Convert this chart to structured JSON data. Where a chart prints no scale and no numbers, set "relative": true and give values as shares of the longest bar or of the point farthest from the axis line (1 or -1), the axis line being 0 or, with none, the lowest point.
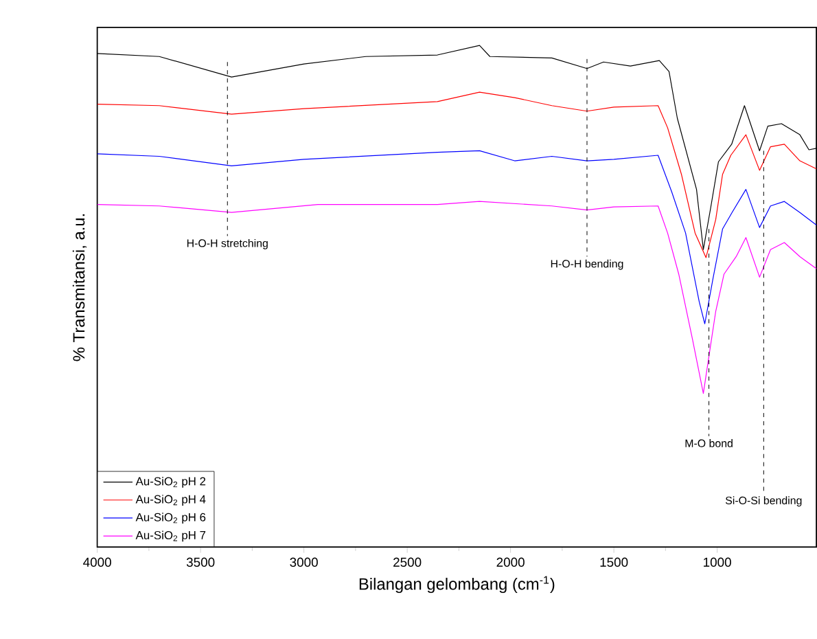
{
  "chart_data": {
    "type": "line",
    "relative": true,
    "xlabel": "Bilangan gelombang (cm$^{-1}$)",
    "ylabel": "% Transmitansi, a.u.",
    "xlim": [
      4000,
      520
    ],
    "xticks": [
      4000,
      3500,
      3000,
      2500,
      2000,
      1500,
      1000
    ],
    "legend": "bottom left",
    "grid": false,
    "line_style": "solid",
    "x": [
      4000,
      3700,
      3350,
      3000,
      2700,
      2354,
      2150,
      2100,
      1800,
      1630,
      1550,
      1420,
      1280,
      1233,
      1193,
      1100,
      1067,
      1030,
      994,
      930,
      868,
      795,
      755,
      689,
      600,
      556,
      520
    ],
    "series": [
      {
        "name": "Au-SiO$_{2}$ pH 2",
        "color": "#000000",
        "values": [
          0.984,
          0.978,
          0.937,
          0.963,
          0.978,
          0.981,
          1.0,
          0.978,
          0.975,
          0.954,
          0.967,
          0.959,
          0.97,
          0.948,
          0.855,
          0.713,
          0.593,
          0.68,
          0.768,
          0.803,
          0.88,
          0.79,
          0.839,
          0.844,
          0.822,
          0.792,
          0.795
        ]
      },
      {
        "name": "Au-SiO$_{2}$ pH 4",
        "color": "#ff0000",
        "x": [
          4000,
          3700,
          3350,
          3000,
          2354,
          2150,
          1980,
          1800,
          1630,
          1500,
          1286,
          1240,
          1173,
          1107,
          1054,
          1007,
          974,
          934,
          861,
          795,
          742,
          675,
          600,
          520
        ],
        "values": [
          0.883,
          0.88,
          0.863,
          0.874,
          0.888,
          0.907,
          0.896,
          0.88,
          0.869,
          0.877,
          0.88,
          0.836,
          0.743,
          0.626,
          0.577,
          0.653,
          0.743,
          0.781,
          0.822,
          0.751,
          0.798,
          0.803,
          0.77,
          0.754
        ]
      },
      {
        "name": "Au-SiO$_{2}$ pH 6",
        "color": "#0000ff",
        "x": [
          4000,
          3700,
          3350,
          3000,
          2354,
          2150,
          1980,
          1800,
          1630,
          1500,
          1286,
          1220,
          1153,
          1087,
          1060,
          1020,
          974,
          928,
          861,
          795,
          742,
          675,
          600,
          520
        ],
        "values": [
          0.784,
          0.779,
          0.76,
          0.773,
          0.787,
          0.79,
          0.77,
          0.779,
          0.77,
          0.773,
          0.781,
          0.708,
          0.626,
          0.489,
          0.445,
          0.536,
          0.634,
          0.667,
          0.713,
          0.637,
          0.68,
          0.689,
          0.667,
          0.642
        ]
      },
      {
        "name": "Au-SiO$_{2}$ pH 7",
        "color": "#ff00ff",
        "x": [
          4000,
          3700,
          3350,
          2932,
          2354,
          2150,
          1800,
          1630,
          1500,
          1286,
          1240,
          1186,
          1120,
          1067,
          1040,
          1007,
          967,
          908,
          861,
          795,
          742,
          675,
          600,
          520
        ],
        "values": [
          0.683,
          0.68,
          0.667,
          0.683,
          0.683,
          0.689,
          0.68,
          0.672,
          0.678,
          0.68,
          0.626,
          0.544,
          0.415,
          0.306,
          0.38,
          0.47,
          0.544,
          0.579,
          0.617,
          0.538,
          0.593,
          0.607,
          0.579,
          0.555
        ]
      }
    ],
    "ref_lines": [
      {
        "axis": "x",
        "value": 3370,
        "label": "H-O-H stretching",
        "line_style": "dashed",
        "color": "#000000"
      },
      {
        "axis": "x",
        "value": 1630,
        "label": "H-O-H bending",
        "line_style": "dashed",
        "color": "#000000"
      },
      {
        "axis": "x",
        "value": 1040,
        "label": "M-O bond",
        "line_style": "dashed",
        "color": "#000000"
      },
      {
        "axis": "x",
        "value": 775,
        "label": "Si-O-Si bending",
        "line_style": "dashed",
        "color": "#000000"
      }
    ]
  }
}
